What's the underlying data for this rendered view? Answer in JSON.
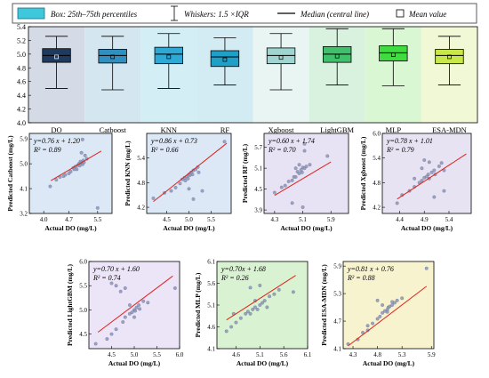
{
  "legend": {
    "box": "Box: 25th–75th percentiles",
    "whiskers": "Whiskers: 1.5 ×IQR",
    "median": "Median (central line)",
    "mean": "Mean value"
  },
  "chart_data": [
    {
      "type": "box",
      "ylim": [
        4.0,
        5.4
      ],
      "yticks": [
        "4.0",
        "4.2",
        "4.4",
        "4.6",
        "4.8",
        "5.0",
        "5.2",
        "5.4"
      ],
      "colors": [
        "#1e3a5f",
        "#2f8fc1",
        "#2ea9d6",
        "#1fa0c8",
        "#9fd5d0",
        "#3fc06a",
        "#3fdc3f",
        "#c8e84a"
      ],
      "bg_colors": [
        "#d4dbe6",
        "#d4e7f1",
        "#d4eef5",
        "#d3ebf3",
        "#e9f5f3",
        "#d9f2df",
        "#d9f7d2",
        "#f0f8d6"
      ],
      "series": [
        {
          "name": "DO",
          "min": 4.5,
          "q1": 4.88,
          "median": 4.98,
          "q3": 5.08,
          "max": 5.26,
          "mean": 4.96
        },
        {
          "name": "Catboost",
          "min": 4.48,
          "q1": 4.87,
          "median": 4.98,
          "q3": 5.07,
          "max": 5.26,
          "mean": 4.96
        },
        {
          "name": "KNN",
          "min": 4.5,
          "q1": 4.86,
          "median": 5.0,
          "q3": 5.1,
          "max": 5.3,
          "mean": 4.96
        },
        {
          "name": "RF",
          "min": 4.55,
          "q1": 4.82,
          "median": 4.96,
          "q3": 5.05,
          "max": 5.24,
          "mean": 4.92
        },
        {
          "name": "Xgboost",
          "min": 4.48,
          "q1": 4.86,
          "median": 4.98,
          "q3": 5.09,
          "max": 5.3,
          "mean": 4.95
        },
        {
          "name": "LightGBM",
          "min": 4.55,
          "q1": 4.88,
          "median": 5.0,
          "q3": 5.11,
          "max": 5.37,
          "mean": 4.97
        },
        {
          "name": "MLP",
          "min": 4.54,
          "q1": 4.9,
          "median": 5.02,
          "q3": 5.12,
          "max": 5.37,
          "mean": 4.99
        },
        {
          "name": "ESA-MDN",
          "min": 4.55,
          "q1": 4.86,
          "median": 4.98,
          "q3": 5.07,
          "max": 5.26,
          "mean": 4.96
        }
      ]
    },
    {
      "type": "scatter",
      "name": "Catboost",
      "ylabel": "Predicted Catboost (mg/L)",
      "xlabel": "Actual DO (mg/L)",
      "equation": "y=0.76 x + 1.20",
      "r2": "R² = 0.89",
      "bg": "#dce8f5",
      "xlim": [
        3.6,
        5.9
      ],
      "ylim": [
        3.2,
        6.1
      ],
      "xticks": [
        4.0,
        4.7,
        5.5
      ],
      "yticks": [
        3.2,
        4.1,
        5.0,
        5.9
      ],
      "line": [
        [
          4.2,
          4.39
        ],
        [
          5.6,
          5.46
        ]
      ],
      "points": [
        [
          4.18,
          4.18
        ],
        [
          4.35,
          4.42
        ],
        [
          4.45,
          4.52
        ],
        [
          4.55,
          4.55
        ],
        [
          4.6,
          4.6
        ],
        [
          4.75,
          4.72
        ],
        [
          4.82,
          4.85
        ],
        [
          4.88,
          4.9
        ],
        [
          4.92,
          4.8
        ],
        [
          4.95,
          4.95
        ],
        [
          4.98,
          5.0
        ],
        [
          5.0,
          4.93
        ],
        [
          5.02,
          5.08
        ],
        [
          5.05,
          5.02
        ],
        [
          5.08,
          4.98
        ],
        [
          5.1,
          5.12
        ],
        [
          5.12,
          5.05
        ],
        [
          5.15,
          5.3
        ],
        [
          5.05,
          5.4
        ],
        [
          5.08,
          5.88
        ],
        [
          5.2,
          5.18
        ],
        [
          5.5,
          3.4
        ],
        [
          4.7,
          4.65
        ],
        [
          4.85,
          4.8
        ]
      ]
    },
    {
      "type": "scatter",
      "name": "KNN",
      "ylabel": "Predicted KNN (mg/L)",
      "xlabel": "Actual DO (mg/L)",
      "equation": "y=0.86 x + 0.73",
      "r2": "R² = 0.66",
      "bg": "#dde8f7",
      "xlim": [
        4.05,
        5.95
      ],
      "ylim": [
        4.05,
        6.0
      ],
      "xticks": [
        4.5,
        5.0,
        5.5
      ],
      "yticks": [
        4.2,
        4.8,
        5.4
      ],
      "line": [
        [
          4.2,
          4.34
        ],
        [
          5.85,
          5.76
        ]
      ],
      "points": [
        [
          4.2,
          4.42
        ],
        [
          4.45,
          4.55
        ],
        [
          4.6,
          4.6
        ],
        [
          4.7,
          4.68
        ],
        [
          4.8,
          4.78
        ],
        [
          4.85,
          4.88
        ],
        [
          4.9,
          4.92
        ],
        [
          4.95,
          4.95
        ],
        [
          4.98,
          4.9
        ],
        [
          5.0,
          5.0
        ],
        [
          5.05,
          5.05
        ],
        [
          5.08,
          5.0
        ],
        [
          5.1,
          5.1
        ],
        [
          5.15,
          5.12
        ],
        [
          5.2,
          5.18
        ],
        [
          5.22,
          5.05
        ],
        [
          5.3,
          4.6
        ],
        [
          5.1,
          4.4
        ],
        [
          5.0,
          4.65
        ],
        [
          5.8,
          5.8
        ],
        [
          4.92,
          4.85
        ],
        [
          5.02,
          4.98
        ]
      ]
    },
    {
      "type": "scatter",
      "name": "RF",
      "ylabel": "Predicted RF (mg/L)",
      "xlabel": "Actual DO (mg/L)",
      "equation": "y=0.60 x + 1.74",
      "r2": "R² = 0.70",
      "bg": "#e7e3f5",
      "xlim": [
        4.0,
        6.4
      ],
      "ylim": [
        3.8,
        6.1
      ],
      "xticks": [
        4.3,
        5.1,
        5.9
      ],
      "yticks": [
        3.9,
        4.5,
        5.1,
        5.7
      ],
      "line": [
        [
          4.3,
          4.32
        ],
        [
          5.9,
          5.28
        ]
      ],
      "points": [
        [
          4.3,
          4.4
        ],
        [
          4.5,
          4.55
        ],
        [
          4.6,
          4.6
        ],
        [
          4.7,
          4.72
        ],
        [
          4.8,
          4.75
        ],
        [
          4.85,
          4.85
        ],
        [
          4.9,
          4.85
        ],
        [
          4.95,
          5.0
        ],
        [
          5.0,
          4.95
        ],
        [
          5.05,
          5.05
        ],
        [
          5.08,
          4.98
        ],
        [
          5.1,
          5.12
        ],
        [
          5.15,
          5.1
        ],
        [
          5.2,
          5.15
        ],
        [
          5.3,
          5.2
        ],
        [
          5.15,
          5.6
        ],
        [
          5.15,
          5.8
        ],
        [
          5.1,
          3.98
        ],
        [
          4.8,
          4.1
        ],
        [
          5.8,
          5.45
        ],
        [
          4.9,
          5.1
        ],
        [
          5.0,
          5.2
        ]
      ]
    },
    {
      "type": "scatter",
      "name": "Xgboost",
      "ylabel": "Predicted Xgboost (mg/L)",
      "xlabel": "Actual DO (mg/L)",
      "equation": "y=0.78 x + 1.01",
      "r2": "R² = 0.79",
      "bg": "#e7e3f2",
      "xlim": [
        4.05,
        5.85
      ],
      "ylim": [
        4.05,
        6.0
      ],
      "xticks": [
        4.4,
        4.9,
        5.4
      ],
      "yticks": [
        4.2,
        4.8,
        5.4,
        6.0
      ],
      "line": [
        [
          4.35,
          4.4
        ],
        [
          5.75,
          5.5
        ]
      ],
      "points": [
        [
          4.35,
          4.3
        ],
        [
          4.45,
          4.5
        ],
        [
          4.6,
          4.6
        ],
        [
          4.7,
          4.7
        ],
        [
          4.8,
          4.8
        ],
        [
          4.85,
          4.85
        ],
        [
          4.9,
          4.92
        ],
        [
          4.95,
          4.95
        ],
        [
          4.98,
          5.0
        ],
        [
          5.0,
          4.9
        ],
        [
          5.05,
          5.05
        ],
        [
          5.1,
          5.1
        ],
        [
          5.12,
          5.0
        ],
        [
          5.2,
          5.2
        ],
        [
          5.25,
          5.28
        ],
        [
          5.3,
          4.6
        ],
        [
          5.1,
          4.45
        ],
        [
          4.9,
          5.35
        ],
        [
          5.0,
          5.3
        ],
        [
          5.3,
          5.1
        ],
        [
          4.7,
          4.9
        ],
        [
          4.85,
          5.15
        ]
      ]
    },
    {
      "type": "scatter",
      "name": "LightGBM",
      "ylabel": "Predicted LightGBM (mg/L)",
      "xlabel": "Actual DO (mg/L)",
      "equation": "y=0.70 x + 1.60",
      "r2": "R² = 0.74",
      "bg": "#ece4f7",
      "xlim": [
        4.0,
        6.0
      ],
      "ylim": [
        4.2,
        6.0
      ],
      "xticks": [
        4.5,
        5.0,
        5.5,
        6.0
      ],
      "yticks": [
        4.5,
        5.0,
        5.5,
        6.0
      ],
      "line": [
        [
          4.2,
          4.54
        ],
        [
          5.85,
          5.7
        ]
      ],
      "points": [
        [
          4.15,
          4.3
        ],
        [
          4.4,
          4.4
        ],
        [
          4.5,
          4.5
        ],
        [
          4.6,
          4.6
        ],
        [
          4.75,
          4.75
        ],
        [
          4.8,
          4.85
        ],
        [
          4.9,
          4.92
        ],
        [
          4.95,
          4.95
        ],
        [
          5.0,
          5.0
        ],
        [
          5.02,
          4.98
        ],
        [
          5.05,
          5.05
        ],
        [
          5.1,
          5.1
        ],
        [
          5.12,
          5.02
        ],
        [
          5.2,
          5.18
        ],
        [
          5.3,
          5.15
        ],
        [
          4.6,
          5.5
        ],
        [
          4.5,
          5.55
        ],
        [
          4.7,
          5.38
        ],
        [
          4.8,
          5.45
        ],
        [
          5.9,
          5.45
        ],
        [
          5.0,
          4.85
        ],
        [
          4.9,
          5.1
        ]
      ]
    },
    {
      "type": "scatter",
      "name": "MLP",
      "ylabel": "Predicted MLP (mg/L)",
      "xlabel": "Actual DO (mg/L)",
      "equation": "y=0.70x + 1.68",
      "r2": "R² = 0.26",
      "bg": "#d9f2d2",
      "xlim": [
        4.2,
        6.1
      ],
      "ylim": [
        4.1,
        6.1
      ],
      "xticks": [
        4.6,
        5.1,
        5.6,
        6.1
      ],
      "yticks": [
        4.1,
        4.6,
        5.1,
        5.6,
        6.1
      ],
      "line": [
        [
          4.4,
          4.76
        ],
        [
          5.85,
          5.78
        ]
      ],
      "points": [
        [
          4.4,
          4.5
        ],
        [
          4.5,
          4.6
        ],
        [
          4.6,
          4.7
        ],
        [
          4.7,
          4.8
        ],
        [
          4.8,
          4.9
        ],
        [
          4.85,
          4.95
        ],
        [
          4.9,
          4.9
        ],
        [
          4.95,
          5.0
        ],
        [
          5.0,
          5.05
        ],
        [
          5.05,
          5.0
        ],
        [
          5.1,
          5.1
        ],
        [
          5.15,
          5.15
        ],
        [
          5.2,
          5.2
        ],
        [
          5.3,
          5.3
        ],
        [
          5.4,
          5.35
        ],
        [
          5.5,
          5.45
        ],
        [
          5.8,
          5.4
        ],
        [
          5.1,
          5.55
        ],
        [
          4.9,
          5.5
        ],
        [
          5.0,
          5.2
        ],
        [
          5.25,
          5.05
        ],
        [
          4.55,
          4.9
        ]
      ]
    },
    {
      "type": "scatter",
      "name": "ESA-MDN",
      "ylabel": "Predicted ESA-MDN (mg/L)",
      "xlabel": "Actual DO (mg/L)",
      "equation": "y=0.81 x + 0.76",
      "r2": "R² = 0.88",
      "bg": "#f7f3cf",
      "xlim": [
        4.1,
        5.95
      ],
      "ylim": [
        4.1,
        6.0
      ],
      "xticks": [
        4.3,
        4.8,
        5.3,
        5.9
      ],
      "yticks": [
        4.1,
        4.7,
        5.3,
        5.9
      ],
      "line": [
        [
          4.2,
          4.16
        ],
        [
          5.8,
          5.46
        ]
      ],
      "points": [
        [
          4.2,
          4.2
        ],
        [
          4.4,
          4.3
        ],
        [
          4.5,
          4.45
        ],
        [
          4.6,
          4.6
        ],
        [
          4.7,
          4.65
        ],
        [
          4.8,
          4.75
        ],
        [
          4.85,
          4.8
        ],
        [
          4.9,
          4.88
        ],
        [
          4.95,
          4.92
        ],
        [
          5.0,
          4.95
        ],
        [
          5.02,
          5.0
        ],
        [
          5.05,
          5.02
        ],
        [
          5.1,
          5.05
        ],
        [
          5.15,
          5.1
        ],
        [
          5.2,
          5.15
        ],
        [
          5.3,
          5.2
        ],
        [
          4.8,
          5.15
        ],
        [
          4.9,
          5.05
        ],
        [
          4.6,
          4.5
        ],
        [
          5.8,
          5.85
        ],
        [
          5.0,
          4.9
        ],
        [
          5.1,
          5.12
        ]
      ]
    }
  ]
}
